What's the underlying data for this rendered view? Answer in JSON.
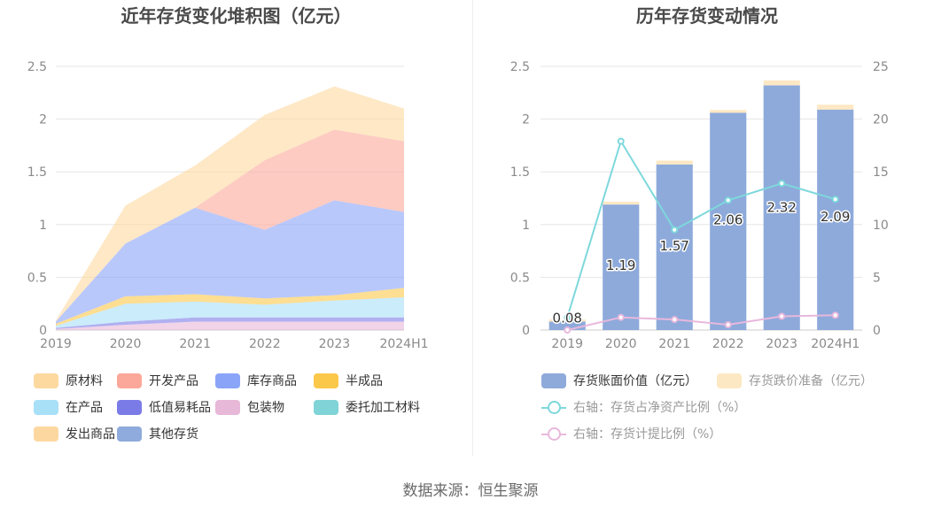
{
  "source_label": "数据来源：恒生聚源",
  "chart_data": [
    {
      "type": "area",
      "stacked": true,
      "title": "近年存货变化堆积图（亿元）",
      "categories": [
        "2019",
        "2020",
        "2021",
        "2022",
        "2023",
        "2024H1"
      ],
      "ylim": [
        0,
        2.5
      ],
      "y_ticks": [
        "0",
        "0.5",
        "1",
        "1.5",
        "2",
        "2.5"
      ],
      "grid": true,
      "legend_position": "bottom",
      "series": [
        {
          "name": "其他存货",
          "color": "#8faadc",
          "values": [
            0,
            0,
            0,
            0,
            0,
            0
          ]
        },
        {
          "name": "包装物",
          "color": "#e8b8d8",
          "values": [
            0.01,
            0.05,
            0.08,
            0.08,
            0.08,
            0.08
          ]
        },
        {
          "name": "低值易耗品",
          "color": "#7b7be8",
          "values": [
            0.01,
            0.03,
            0.04,
            0.04,
            0.04,
            0.04
          ]
        },
        {
          "name": "委托加工材料",
          "color": "#80d4d8",
          "values": [
            0,
            0,
            0,
            0,
            0,
            0
          ]
        },
        {
          "name": "在产品",
          "color": "#a8e0f8",
          "values": [
            0.02,
            0.17,
            0.15,
            0.12,
            0.16,
            0.19
          ]
        },
        {
          "name": "半成品",
          "color": "#fcc84a",
          "values": [
            0.02,
            0.07,
            0.07,
            0.06,
            0.05,
            0.09
          ]
        },
        {
          "name": "库存商品",
          "color": "#8aa4f8",
          "values": [
            0.02,
            0.5,
            0.82,
            0.65,
            0.9,
            0.72
          ]
        },
        {
          "name": "开发产品",
          "color": "#fba89a",
          "values": [
            0,
            0,
            0,
            0.66,
            0.67,
            0.67
          ]
        },
        {
          "name": "发出商品",
          "color": "#fcd8a0",
          "values": [
            0,
            0,
            0,
            0,
            0,
            0
          ]
        },
        {
          "name": "原材料",
          "color": "#fdd9a0",
          "values": [
            0.01,
            0.36,
            0.4,
            0.43,
            0.41,
            0.31
          ]
        }
      ],
      "legend_order": [
        "原材料",
        "开发产品",
        "库存商品",
        "半成品",
        "在产品",
        "低值易耗品",
        "包装物",
        "委托加工材料",
        "发出商品",
        "其他存货"
      ]
    },
    {
      "type": "bar",
      "stacked": true,
      "title": "历年存货变动情况",
      "categories": [
        "2019",
        "2020",
        "2021",
        "2022",
        "2023",
        "2024H1"
      ],
      "ylim": [
        0,
        2.5
      ],
      "y_ticks": [
        "0",
        "0.5",
        "1",
        "1.5",
        "2",
        "2.5"
      ],
      "y2lim": [
        0,
        25
      ],
      "y2_ticks": [
        "0",
        "5",
        "10",
        "15",
        "20",
        "25"
      ],
      "grid": true,
      "legend_position": "bottom",
      "series": [
        {
          "name": "存货账面价值（亿元）",
          "color": "#8eaadb",
          "axis": "left",
          "values": [
            0.08,
            1.19,
            1.57,
            2.06,
            2.32,
            2.09
          ],
          "labels": [
            "0.08",
            "1.19",
            "1.57",
            "2.06",
            "2.32",
            "2.09"
          ]
        },
        {
          "name": "存货跌价准备（亿元）",
          "color": "#fde8c4",
          "axis": "left",
          "values": [
            0.005,
            0.01,
            0.02,
            0.01,
            0.03,
            0.03
          ]
        },
        {
          "name": "右轴：存货占净资产比例（%）",
          "type": "line",
          "color": "#7dd8dc",
          "axis": "right",
          "values": [
            1.2,
            17.9,
            9.5,
            12.3,
            13.9,
            12.4
          ]
        },
        {
          "name": "右轴：存货计提比例（%）",
          "type": "line",
          "color": "#e8b8dc",
          "axis": "right",
          "values": [
            0,
            1.2,
            1.0,
            0.5,
            1.3,
            1.4
          ]
        }
      ]
    }
  ]
}
